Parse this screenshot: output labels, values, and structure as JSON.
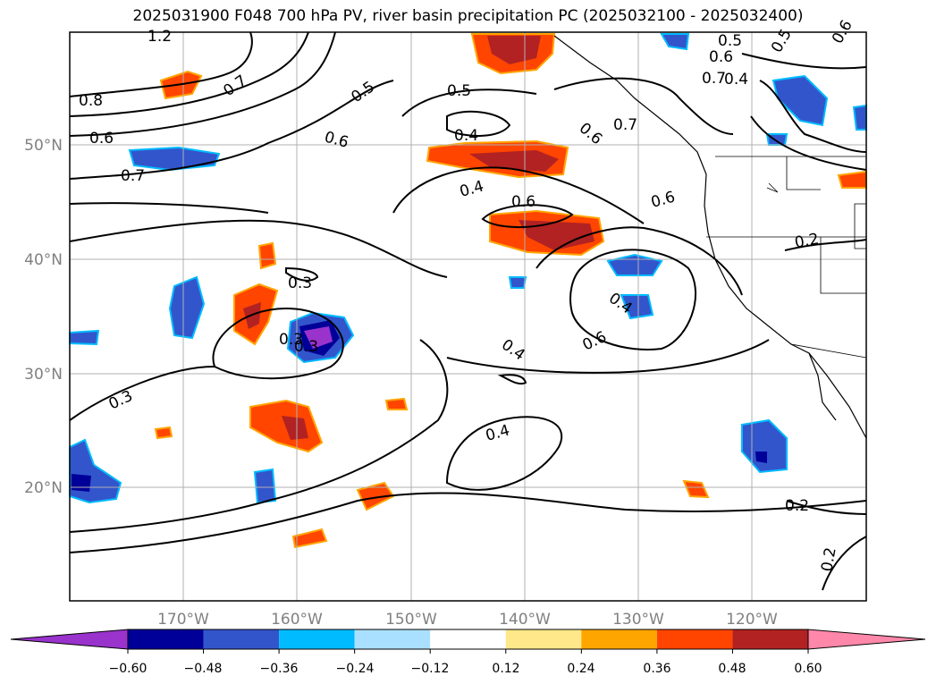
{
  "title": "2025031900 F048 700 hPa PV, river basin precipitation PC (2025032100 - 2025032400)",
  "map": {
    "lat_labels": [
      "50°N",
      "40°N",
      "30°N",
      "20°N"
    ],
    "lon_labels": [
      "170°W",
      "160°W",
      "150°W",
      "140°W",
      "130°W",
      "120°W"
    ],
    "contour_labels": [
      "1.2",
      "0.8",
      "0.6",
      "0.7",
      "0.7",
      "0.6",
      "0.5",
      "0.4",
      "0.5",
      "0.4",
      "0.6",
      "0.6",
      "0.7",
      "0.5",
      "0.6",
      "0.7",
      "0.4",
      "0.5",
      "0.6",
      "0.2",
      "0.3",
      "0.3",
      "0.3",
      "0.4",
      "0.6",
      "0.4",
      "0.4",
      "0.3",
      "0.2",
      "0.2",
      "0.6"
    ]
  },
  "colorbar": {
    "labels": [
      "−0.60",
      "−0.48",
      "−0.36",
      "−0.24",
      "−0.12",
      "0.12",
      "0.24",
      "0.36",
      "0.48",
      "0.60"
    ],
    "colors": [
      "#9933cc",
      "#000099",
      "#3355cc",
      "#00bbff",
      "#aae0ff",
      "#ffffff",
      "#ffe88a",
      "#ffa500",
      "#ff4500",
      "#b22222",
      "#ff88aa"
    ]
  }
}
